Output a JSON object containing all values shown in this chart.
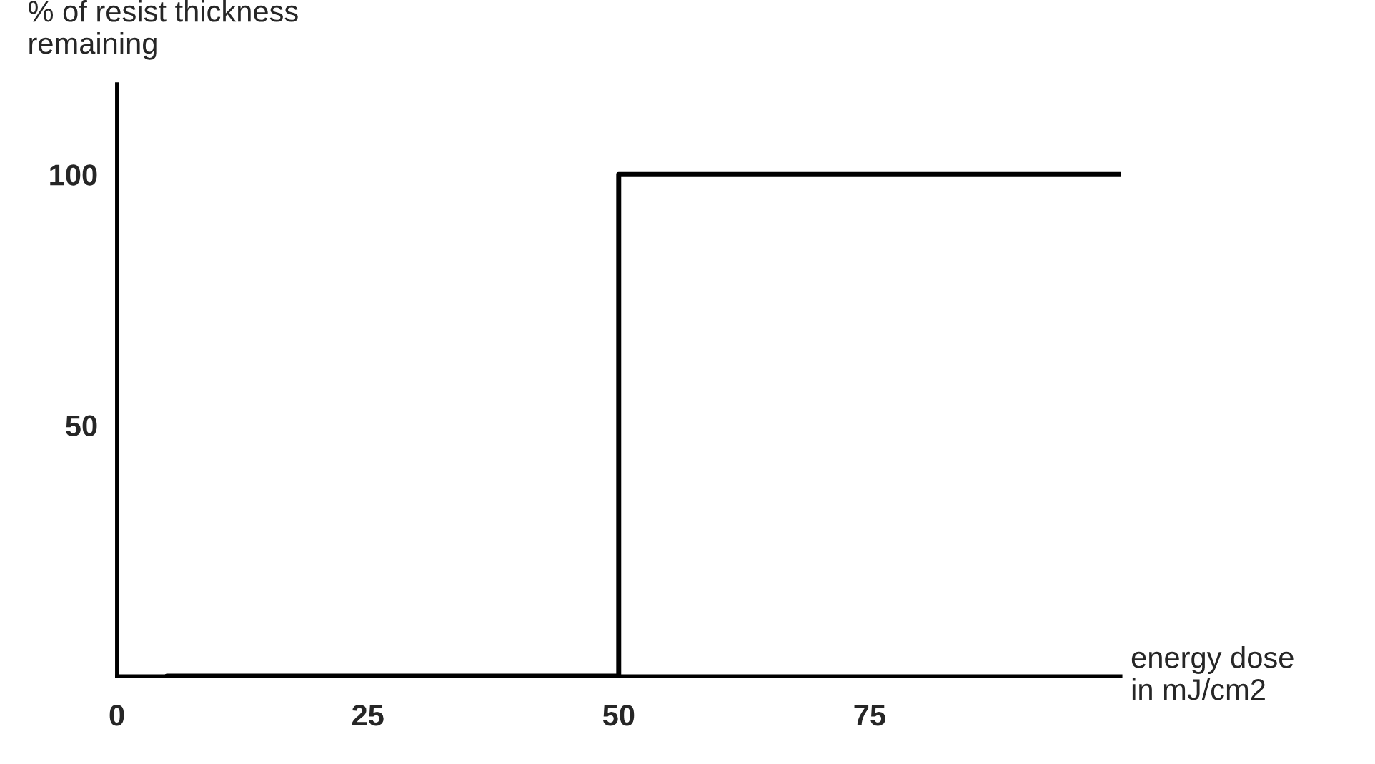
{
  "chart_data": {
    "type": "step",
    "xlabel": "energy dose\nin mJ/cm2",
    "ylabel": "% of resist thickness\nremaining",
    "x": [
      5,
      50,
      100
    ],
    "series": [
      {
        "color": "#000000",
        "values": [
          0,
          100,
          100
        ]
      }
    ],
    "xlim": [
      0,
      100
    ],
    "xticks": [
      0,
      25,
      50,
      75
    ],
    "ylim": [
      0,
      118
    ],
    "yticks": [
      50,
      100
    ],
    "grid": false,
    "legend": false
  }
}
